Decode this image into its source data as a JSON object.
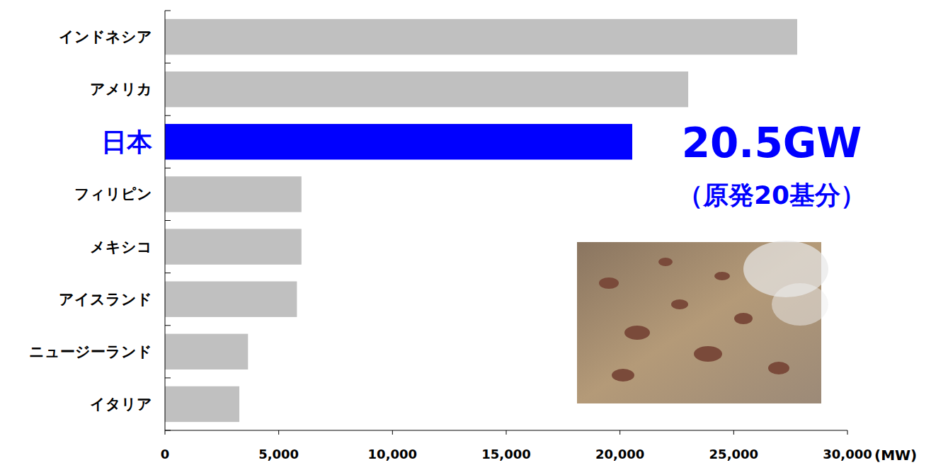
{
  "chart_data": {
    "type": "bar",
    "orientation": "horizontal",
    "categories": [
      "インドネシア",
      "アメリカ",
      "日本",
      "フィリピン",
      "メキシコ",
      "アイスランド",
      "ニュージーランド",
      "イタリア"
    ],
    "values": [
      27790,
      23000,
      20540,
      6000,
      6000,
      5800,
      3650,
      3270
    ],
    "colors": [
      "#c0c0c0",
      "#c0c0c0",
      "#0000ff",
      "#c0c0c0",
      "#c0c0c0",
      "#c0c0c0",
      "#c0c0c0",
      "#c0c0c0"
    ],
    "xlim": [
      0,
      30000
    ],
    "xticks": [
      0,
      {
        "value": 5000,
        "label": "5,000"
      },
      {
        "value": 10000,
        "label": "10,000"
      },
      {
        "value": 15000,
        "label": "15,000"
      },
      {
        "value": 20000,
        "label": "20,000"
      },
      {
        "value": 25000,
        "label": "25,000"
      },
      {
        "value": 30000,
        "label": "30,000"
      }
    ],
    "xlabel": "(MW)",
    "annotations": [
      "20.5GW",
      "（原発20基分）"
    ],
    "grid": false
  }
}
